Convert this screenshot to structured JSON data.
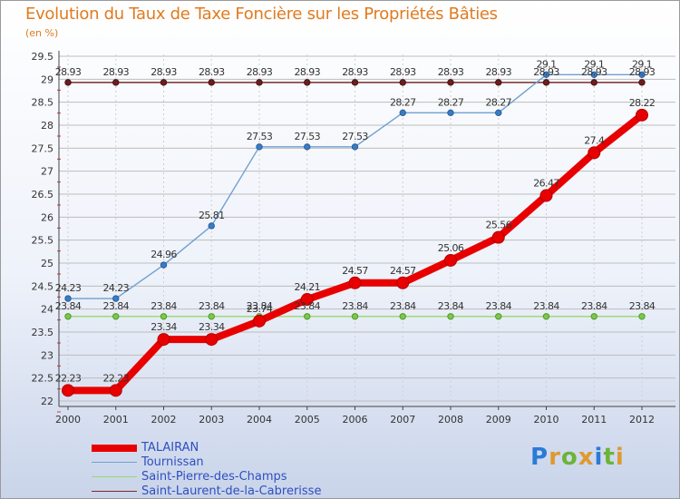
{
  "header": {
    "title": "Evolution du Taux de Taxe Foncière sur les Propriétés Bâties",
    "subtitle": "(en %)"
  },
  "logo": {
    "letters": [
      "P",
      "r",
      "o",
      "x",
      "i",
      "t",
      "i"
    ],
    "colors": [
      "#2b7bd6",
      "#e0992f",
      "#6bb43a",
      "#e0992f",
      "#2b7bd6",
      "#6bb43a",
      "#e0992f"
    ]
  },
  "chart_data": {
    "type": "line",
    "title": "Evolution du Taux de Taxe Foncière sur les Propriétés Bâties",
    "subtitle": "(en %)",
    "xlabel": "",
    "ylabel": "",
    "x": [
      "2000",
      "2001",
      "2002",
      "2003",
      "2004",
      "2005",
      "2006",
      "2007",
      "2008",
      "2009",
      "2010",
      "2011",
      "2012"
    ],
    "ylim": [
      22,
      29.5
    ],
    "yticks": [
      22,
      22.5,
      23,
      23.5,
      24,
      24.5,
      25,
      25.5,
      26,
      26.5,
      27,
      27.5,
      28,
      28.5,
      29,
      29.5
    ],
    "ytick_labels": [
      "22",
      "22.5",
      "23",
      "23.5",
      "24",
      "24.5",
      "25",
      "25.5",
      "26",
      "26.5",
      "27",
      "27.5",
      "28",
      "28.5",
      "29",
      "29.5"
    ],
    "grid": "horizontal",
    "legend_position": "bottom-left",
    "series": [
      {
        "name": "TALAIRAN",
        "color": "#e80000",
        "values": [
          22.23,
          22.23,
          23.34,
          23.34,
          23.74,
          24.21,
          24.57,
          24.57,
          25.06,
          25.56,
          26.47,
          27.4,
          28.22
        ],
        "labels": [
          "22.23",
          "22.23",
          "23.34",
          "23.34",
          "23.74",
          "24.21",
          "24.57",
          "24.57",
          "25.06",
          "25.56",
          "26.47",
          "27.4",
          "28.22"
        ]
      },
      {
        "name": "Tournissan",
        "color": "#6fa0d0",
        "values": [
          24.23,
          24.23,
          24.96,
          25.81,
          27.53,
          27.53,
          27.53,
          28.27,
          28.27,
          28.27,
          29.1,
          29.1,
          29.1
        ],
        "labels": [
          "24.23",
          "24.23",
          "24.96",
          "25.81",
          "27.53",
          "27.53",
          "27.53",
          "28.27",
          "28.27",
          "28.27",
          "29.1",
          "29.1",
          "29.1"
        ]
      },
      {
        "name": "Saint-Pierre-des-Champs",
        "color": "#98d86a",
        "values": [
          23.84,
          23.84,
          23.84,
          23.84,
          23.84,
          23.84,
          23.84,
          23.84,
          23.84,
          23.84,
          23.84,
          23.84,
          23.84
        ],
        "labels": [
          "23.84",
          "23.84",
          "23.84",
          "23.84",
          "23.84",
          "23.84",
          "23.84",
          "23.84",
          "23.84",
          "23.84",
          "23.84",
          "23.84",
          "23.84"
        ]
      },
      {
        "name": "Saint-Laurent-de-la-Cabrerisse",
        "color": "#7a2b2b",
        "values": [
          28.93,
          28.93,
          28.93,
          28.93,
          28.93,
          28.93,
          28.93,
          28.93,
          28.93,
          28.93,
          28.93,
          28.93,
          28.93
        ],
        "labels": [
          "28.93",
          "28.93",
          "28.93",
          "28.93",
          "28.93",
          "28.93",
          "28.93",
          "28.93",
          "28.93",
          "28.93",
          "28.93",
          "28.93",
          "28.93"
        ]
      }
    ]
  }
}
